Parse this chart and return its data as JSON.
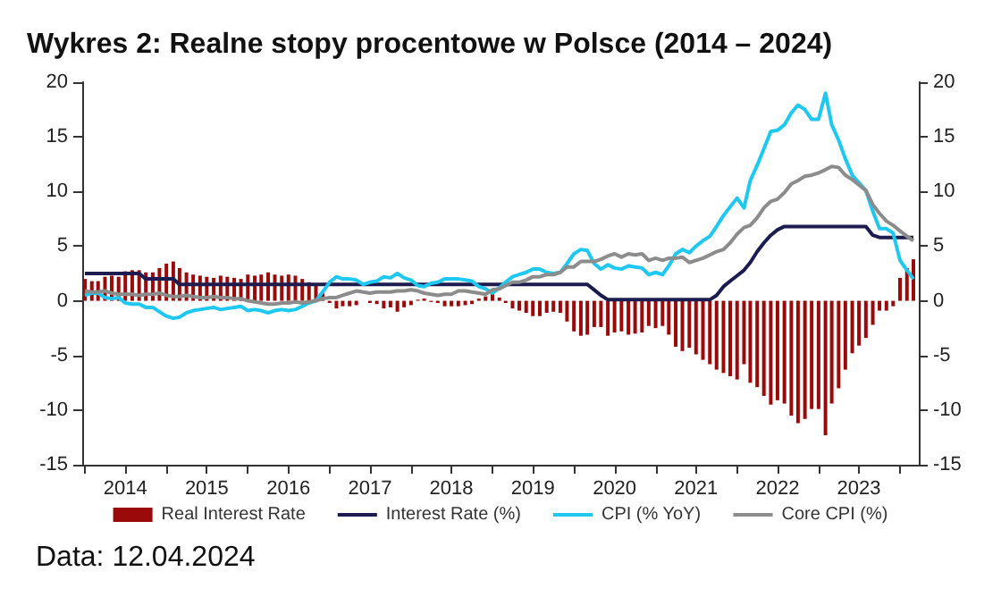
{
  "chart_data": {
    "type": "line",
    "title": "Wykres 2: Realne stopy procentowe w Polsce (2014 – 2024)",
    "annotations": [
      "Data: 12.04.2024"
    ],
    "x": [
      "2014-01",
      "2014-02",
      "2014-03",
      "2014-04",
      "2014-05",
      "2014-06",
      "2014-07",
      "2014-08",
      "2014-09",
      "2014-10",
      "2014-11",
      "2014-12",
      "2015-01",
      "2015-02",
      "2015-03",
      "2015-04",
      "2015-05",
      "2015-06",
      "2015-07",
      "2015-08",
      "2015-09",
      "2015-10",
      "2015-11",
      "2015-12",
      "2016-01",
      "2016-02",
      "2016-03",
      "2016-04",
      "2016-05",
      "2016-06",
      "2016-07",
      "2016-08",
      "2016-09",
      "2016-10",
      "2016-11",
      "2016-12",
      "2017-01",
      "2017-02",
      "2017-03",
      "2017-04",
      "2017-05",
      "2017-06",
      "2017-07",
      "2017-08",
      "2017-09",
      "2017-10",
      "2017-11",
      "2017-12",
      "2018-01",
      "2018-02",
      "2018-03",
      "2018-04",
      "2018-05",
      "2018-06",
      "2018-07",
      "2018-08",
      "2018-09",
      "2018-10",
      "2018-11",
      "2018-12",
      "2019-01",
      "2019-02",
      "2019-03",
      "2019-04",
      "2019-05",
      "2019-06",
      "2019-07",
      "2019-08",
      "2019-09",
      "2019-10",
      "2019-11",
      "2019-12",
      "2020-01",
      "2020-02",
      "2020-03",
      "2020-04",
      "2020-05",
      "2020-06",
      "2020-07",
      "2020-08",
      "2020-09",
      "2020-10",
      "2020-11",
      "2020-12",
      "2021-01",
      "2021-02",
      "2021-03",
      "2021-04",
      "2021-05",
      "2021-06",
      "2021-07",
      "2021-08",
      "2021-09",
      "2021-10",
      "2021-11",
      "2021-12",
      "2022-01",
      "2022-02",
      "2022-03",
      "2022-04",
      "2022-05",
      "2022-06",
      "2022-07",
      "2022-08",
      "2022-09",
      "2022-10",
      "2022-11",
      "2022-12",
      "2023-01",
      "2023-02",
      "2023-03",
      "2023-04",
      "2023-05",
      "2023-06",
      "2023-07",
      "2023-08",
      "2023-09",
      "2023-10",
      "2023-11",
      "2023-12",
      "2024-01",
      "2024-02",
      "2024-03"
    ],
    "xlim": [
      "2013-12-20",
      "2024-03-25"
    ],
    "xticks": [
      {
        "value": "2014-01",
        "label": null
      },
      {
        "value": "2014-07",
        "label": "2014"
      },
      {
        "value": "2015-01",
        "label": null
      },
      {
        "value": "2015-07",
        "label": "2015"
      },
      {
        "value": "2016-01",
        "label": null
      },
      {
        "value": "2016-07",
        "label": "2016"
      },
      {
        "value": "2017-01",
        "label": null
      },
      {
        "value": "2017-07",
        "label": "2017"
      },
      {
        "value": "2018-01",
        "label": null
      },
      {
        "value": "2018-07",
        "label": "2018"
      },
      {
        "value": "2019-01",
        "label": null
      },
      {
        "value": "2019-07",
        "label": "2019"
      },
      {
        "value": "2020-01",
        "label": null
      },
      {
        "value": "2020-07",
        "label": "2020"
      },
      {
        "value": "2021-01",
        "label": null
      },
      {
        "value": "2021-07",
        "label": "2021"
      },
      {
        "value": "2022-01",
        "label": null
      },
      {
        "value": "2022-07",
        "label": "2022"
      },
      {
        "value": "2023-01",
        "label": null
      },
      {
        "value": "2023-07",
        "label": "2023"
      },
      {
        "value": "2024-01",
        "label": null
      }
    ],
    "ylim": [
      -15,
      20
    ],
    "yticks": [
      -15,
      -10,
      -5,
      0,
      5,
      10,
      15,
      20
    ],
    "y2lim": [
      -15,
      20
    ],
    "y2ticks": [
      -15,
      -10,
      -5,
      0,
      5,
      10,
      15,
      20
    ],
    "grid": false,
    "legend": "bottom",
    "marker": "none",
    "line_style": "solid",
    "series": [
      {
        "name": "Real Interest Rate",
        "type": "bar",
        "color": "#9b0a0a",
        "values": [
          2.0,
          1.8,
          1.8,
          2.2,
          2.3,
          2.2,
          2.7,
          2.8,
          2.8,
          2.6,
          2.6,
          3.0,
          3.4,
          3.6,
          3.0,
          2.6,
          2.4,
          2.3,
          2.2,
          2.1,
          2.3,
          2.2,
          2.1,
          2.0,
          2.4,
          2.3,
          2.4,
          2.6,
          2.4,
          2.3,
          2.4,
          2.3,
          2.0,
          1.7,
          1.5,
          0.7,
          -0.2,
          -0.7,
          -0.5,
          -0.5,
          -0.4,
          0.0,
          -0.2,
          -0.3,
          -0.7,
          -0.6,
          -1.0,
          -0.6,
          -0.4,
          0.1,
          0.2,
          -0.1,
          -0.2,
          -0.5,
          -0.5,
          -0.5,
          -0.4,
          -0.3,
          0.2,
          0.4,
          0.8,
          0.3,
          -0.2,
          -0.7,
          -0.9,
          -1.1,
          -1.4,
          -1.4,
          -1.1,
          -1.0,
          -1.1,
          -1.9,
          -2.8,
          -3.2,
          -3.1,
          -2.4,
          -2.4,
          -3.2,
          -2.9,
          -2.8,
          -3.1,
          -3.0,
          -2.9,
          -2.3,
          -2.5,
          -2.3,
          -3.1,
          -4.2,
          -4.6,
          -4.3,
          -4.9,
          -5.4,
          -5.8,
          -6.3,
          -6.6,
          -6.9,
          -7.2,
          -5.8,
          -7.5,
          -7.9,
          -8.7,
          -9.5,
          -9.1,
          -9.4,
          -10.5,
          -11.2,
          -10.8,
          -9.9,
          -9.9,
          -12.3,
          -9.4,
          -8.0,
          -6.3,
          -4.8,
          -4.1,
          -3.4,
          -2.2,
          -0.9,
          -0.9,
          -0.5,
          2.1,
          3.0,
          3.8
        ]
      },
      {
        "name": "Interest Rate (%)",
        "color": "#1c1c50",
        "values": [
          2.5,
          2.5,
          2.5,
          2.5,
          2.5,
          2.5,
          2.5,
          2.5,
          2.5,
          2.0,
          2.0,
          2.0,
          2.0,
          2.0,
          1.5,
          1.5,
          1.5,
          1.5,
          1.5,
          1.5,
          1.5,
          1.5,
          1.5,
          1.5,
          1.5,
          1.5,
          1.5,
          1.5,
          1.5,
          1.5,
          1.5,
          1.5,
          1.5,
          1.5,
          1.5,
          1.5,
          1.5,
          1.5,
          1.5,
          1.5,
          1.5,
          1.5,
          1.5,
          1.5,
          1.5,
          1.5,
          1.5,
          1.5,
          1.5,
          1.5,
          1.5,
          1.5,
          1.5,
          1.5,
          1.5,
          1.5,
          1.5,
          1.5,
          1.5,
          1.5,
          1.5,
          1.5,
          1.5,
          1.5,
          1.5,
          1.5,
          1.5,
          1.5,
          1.5,
          1.5,
          1.5,
          1.5,
          1.5,
          1.5,
          1.5,
          1.0,
          0.5,
          0.1,
          0.1,
          0.1,
          0.1,
          0.1,
          0.1,
          0.1,
          0.1,
          0.1,
          0.1,
          0.1,
          0.1,
          0.1,
          0.1,
          0.1,
          0.1,
          0.5,
          1.3,
          1.8,
          2.3,
          2.8,
          3.5,
          4.5,
          5.3,
          6.0,
          6.5,
          6.8,
          6.8,
          6.8,
          6.8,
          6.8,
          6.8,
          6.8,
          6.8,
          6.8,
          6.8,
          6.8,
          6.8,
          6.8,
          6.0,
          5.8,
          5.8,
          5.8,
          5.8,
          5.8,
          5.8
        ]
      },
      {
        "name": "CPI (% YoY)",
        "color": "#1ec8f0",
        "values": [
          0.5,
          0.7,
          0.7,
          0.3,
          0.2,
          0.3,
          -0.2,
          -0.3,
          -0.3,
          -0.6,
          -0.6,
          -1.0,
          -1.4,
          -1.6,
          -1.5,
          -1.1,
          -0.9,
          -0.8,
          -0.7,
          -0.6,
          -0.8,
          -0.7,
          -0.6,
          -0.5,
          -0.9,
          -0.8,
          -0.9,
          -1.1,
          -0.9,
          -0.8,
          -0.9,
          -0.8,
          -0.5,
          -0.2,
          0.0,
          0.8,
          1.7,
          2.2,
          2.0,
          2.0,
          1.9,
          1.5,
          1.7,
          1.8,
          2.2,
          2.1,
          2.5,
          2.1,
          1.9,
          1.4,
          1.3,
          1.6,
          1.7,
          2.0,
          2.0,
          2.0,
          1.9,
          1.8,
          1.3,
          1.1,
          0.7,
          1.2,
          1.7,
          2.2,
          2.4,
          2.6,
          2.9,
          2.9,
          2.6,
          2.5,
          2.6,
          3.4,
          4.3,
          4.7,
          4.6,
          3.4,
          2.9,
          3.3,
          3.0,
          2.9,
          3.2,
          3.1,
          3.0,
          2.4,
          2.6,
          2.4,
          3.2,
          4.3,
          4.7,
          4.4,
          5.0,
          5.5,
          5.9,
          6.8,
          7.8,
          8.6,
          9.4,
          8.5,
          11.0,
          12.4,
          13.9,
          15.5,
          15.6,
          16.1,
          17.2,
          17.9,
          17.5,
          16.6,
          16.6,
          19.0,
          16.1,
          14.7,
          13.0,
          11.5,
          10.8,
          10.1,
          8.2,
          6.6,
          6.6,
          6.2,
          3.7,
          2.8,
          2.0
        ]
      },
      {
        "name": "Core CPI (%)",
        "color": "#8c8c8c",
        "values": [
          0.9,
          0.8,
          0.8,
          0.9,
          0.7,
          0.6,
          0.6,
          0.6,
          0.5,
          0.6,
          0.6,
          0.7,
          0.5,
          0.4,
          0.4,
          0.5,
          0.4,
          0.3,
          0.3,
          0.4,
          0.3,
          0.3,
          0.2,
          0.2,
          0.0,
          -0.1,
          -0.2,
          -0.3,
          -0.3,
          -0.2,
          -0.2,
          -0.1,
          -0.2,
          -0.1,
          0.0,
          0.2,
          0.3,
          0.3,
          0.5,
          0.7,
          0.9,
          0.8,
          0.7,
          0.8,
          0.8,
          0.8,
          0.9,
          0.9,
          1.0,
          0.9,
          0.7,
          0.6,
          0.5,
          0.6,
          0.6,
          0.9,
          0.9,
          0.8,
          0.7,
          0.6,
          1.0,
          1.1,
          1.4,
          1.7,
          1.7,
          1.9,
          2.2,
          2.2,
          2.4,
          2.4,
          2.6,
          3.1,
          3.1,
          3.6,
          3.6,
          3.6,
          3.8,
          4.1,
          4.3,
          4.0,
          4.3,
          4.2,
          4.3,
          3.7,
          3.9,
          3.7,
          3.9,
          3.9,
          4.0,
          3.5,
          3.7,
          3.9,
          4.2,
          4.5,
          4.7,
          5.3,
          6.1,
          6.7,
          6.9,
          7.6,
          8.5,
          9.1,
          9.3,
          9.9,
          10.7,
          11.0,
          11.4,
          11.5,
          11.7,
          12.0,
          12.3,
          12.2,
          11.5,
          11.1,
          10.6,
          10.1,
          8.8,
          8.0,
          7.3,
          6.9,
          6.4,
          5.9,
          5.5
        ]
      }
    ]
  }
}
